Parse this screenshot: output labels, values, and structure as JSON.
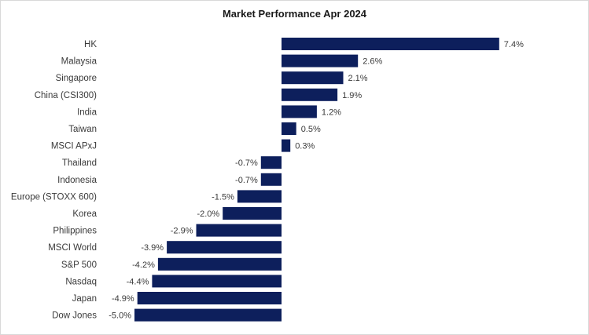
{
  "chart_data": {
    "type": "bar",
    "orientation": "horizontal",
    "title": "Market Performance Apr 2024",
    "categories": [
      "HK",
      "Malaysia",
      "Singapore",
      "China (CSI300)",
      "India",
      "Taiwan",
      "MSCI APxJ",
      "Thailand",
      "Indonesia",
      "Europe (STOXX 600)",
      "Korea",
      "Philippines",
      "MSCI World",
      "S&P 500",
      "Nasdaq",
      "Japan",
      "Dow Jones"
    ],
    "values": [
      7.4,
      2.6,
      2.1,
      1.9,
      1.2,
      0.5,
      0.3,
      -0.7,
      -0.7,
      -1.5,
      -2.0,
      -2.9,
      -3.9,
      -4.2,
      -4.4,
      -4.9,
      -5.0
    ],
    "data_labels": [
      "7.4%",
      "2.6%",
      "2.1%",
      "1.9%",
      "1.2%",
      "0.5%",
      "0.3%",
      "-0.7%",
      "-0.7%",
      "-1.5%",
      "-2.0%",
      "-2.9%",
      "-3.9%",
      "-4.2%",
      "-4.4%",
      "-4.9%",
      "-5.0%"
    ],
    "xlim": [
      -5.0,
      7.4
    ],
    "unit": "%",
    "grid": false,
    "legend": "none",
    "bar_color": "#0d1f5c"
  }
}
